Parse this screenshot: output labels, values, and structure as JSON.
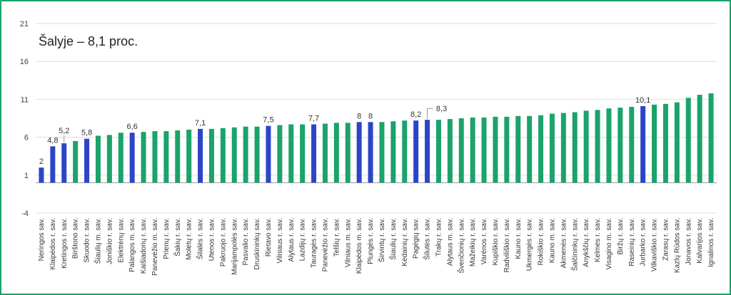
{
  "chart_data": {
    "type": "bar",
    "title": "Šalyje – 8,1 proc.",
    "xlabel": "",
    "ylabel": "",
    "ylim": [
      -4,
      21
    ],
    "yticks": [
      -4,
      1,
      6,
      11,
      16,
      21
    ],
    "grid": true,
    "colors": {
      "default": "#1aa36a",
      "highlight": "#2c45c7"
    },
    "categories": [
      "Neringos sav.",
      "Klaipėdos r. sav.",
      "Kretingos r. sav.",
      "Birštono sav.",
      "Skuodo r. sav.",
      "Šiaulių m. sav.",
      "Joniškio r. sav.",
      "Elektrėnų sav.",
      "Palangos m. sav.",
      "Kaišiadorių r. sav.",
      "Panevėžio m. sav.",
      "Prienų r. sav.",
      "Šakių r. sav.",
      "Molėtų r. sav.",
      "Šilalės r. sav.",
      "Utenos r. sav.",
      "Pakruojo r. sav.",
      "Marijampolės sav.",
      "Pasvalio r. sav.",
      "Druskininkų sav.",
      "Rietavo sav.",
      "Vilniaus r. sav.",
      "Alytaus r. sav.",
      "Lazdijų r. sav.",
      "Tauragės r. sav.",
      "Panevėžio r. sav.",
      "Telšių r. sav.",
      "Vilniaus m. sav.",
      "Klaipėdos m. sav.",
      "Plungės r. sav.",
      "Širvintų r. sav.",
      "Šiaulių r. sav.",
      "Kėdainių r. sav.",
      "Pagėgių sav.",
      "Šilutės r. sav.",
      "Trakų r. sav.",
      "Alytaus m. sav.",
      "Švenčionių r. sav.",
      "Mažeikių r. sav.",
      "Varėnos r. sav.",
      "Kupiškio r. sav.",
      "Radviliškio r. sav.",
      "Kauno r. sav.",
      "Ukmergės r. sav.",
      "Rokiškio r. sav.",
      "Kauno m. sav.",
      "Akmenės r. sav.",
      "Šalčininkų r. sav.",
      "Anykščių r. sav.",
      "Kelmės r. sav.",
      "Visagino m. sav.",
      "Biržų r. sav.",
      "Raseinių r. sav.",
      "Jurbarko r. sav.",
      "Vilkaviškio r. sav.",
      "Zarasų r. sav.",
      "Kazlų Rūdos sav.",
      "Jonavos r. sav.",
      "Kalvarijos sav.",
      "Ignalinos r. sav."
    ],
    "values": [
      2.0,
      4.8,
      5.2,
      5.5,
      5.8,
      6.2,
      6.3,
      6.6,
      6.6,
      6.7,
      6.8,
      6.8,
      6.9,
      7.0,
      7.1,
      7.1,
      7.2,
      7.3,
      7.4,
      7.4,
      7.5,
      7.6,
      7.7,
      7.7,
      7.7,
      7.8,
      7.9,
      7.9,
      8.0,
      8.0,
      8.0,
      8.1,
      8.2,
      8.2,
      8.3,
      8.3,
      8.4,
      8.5,
      8.6,
      8.6,
      8.7,
      8.7,
      8.8,
      8.8,
      8.9,
      9.1,
      9.2,
      9.3,
      9.5,
      9.6,
      9.8,
      9.9,
      10.0,
      10.1,
      10.3,
      10.4,
      10.6,
      11.2,
      11.6,
      11.8
    ],
    "highlighted": [
      "Neringos sav.",
      "Klaipėdos r. sav.",
      "Kretingos r. sav.",
      "Skuodo r. sav.",
      "Palangos m. sav.",
      "Šilalės r. sav.",
      "Rietavo sav.",
      "Tauragės r. sav.",
      "Klaipėdos m. sav.",
      "Plungės r. sav.",
      "Pagėgių sav.",
      "Šilutės r. sav.",
      "Jurbarko r. sav."
    ],
    "data_labels": [
      {
        "category": "Neringos sav.",
        "text": "2"
      },
      {
        "category": "Klaipėdos r. sav.",
        "text": "4,8"
      },
      {
        "category": "Kretingos r. sav.",
        "text": "5,2"
      },
      {
        "category": "Skuodo r. sav.",
        "text": "5,8"
      },
      {
        "category": "Palangos m. sav.",
        "text": "6,6"
      },
      {
        "category": "Šilalės r. sav.",
        "text": "7,1"
      },
      {
        "category": "Rietavo sav.",
        "text": "7,5"
      },
      {
        "category": "Tauragės r. sav.",
        "text": "7,7"
      },
      {
        "category": "Klaipėdos m. sav.",
        "text": "8"
      },
      {
        "category": "Plungės r. sav.",
        "text": "8"
      },
      {
        "category": "Pagėgių sav.",
        "text": "8,2"
      },
      {
        "category": "Šilutės r. sav.",
        "text": "8,3"
      },
      {
        "category": "Jurbarko r. sav.",
        "text": "10,1"
      }
    ]
  }
}
